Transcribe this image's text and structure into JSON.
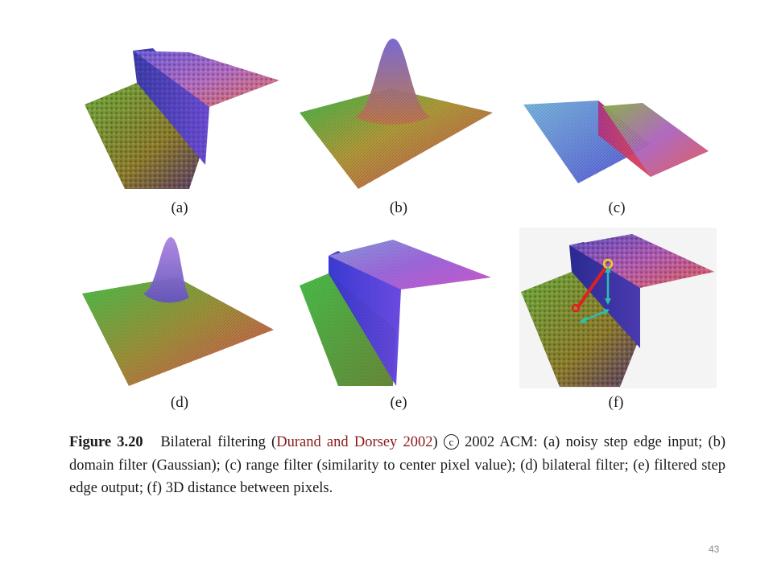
{
  "figure": {
    "panels": [
      {
        "id": "a",
        "label": "(a)",
        "icon": "noisy-step-surface"
      },
      {
        "id": "b",
        "label": "(b)",
        "icon": "gaussian-surface"
      },
      {
        "id": "c",
        "label": "(c)",
        "icon": "range-filter-surface"
      },
      {
        "id": "d",
        "label": "(d)",
        "icon": "bilateral-filter-surface"
      },
      {
        "id": "e",
        "label": "(e)",
        "icon": "filtered-step-surface"
      },
      {
        "id": "f",
        "label": "(f)",
        "icon": "distance-diagram-surface"
      }
    ],
    "caption": {
      "figure_number": "Figure 3.20",
      "title_start": "Bilateral filtering (",
      "citation": "Durand and Dorsey 2002",
      "after_citation": ")",
      "copyright_symbol": "c",
      "copyright_text": "2002 ACM: ",
      "parts": [
        {
          "tag": "(a)",
          "text": " noisy step edge input; "
        },
        {
          "tag": "(b)",
          "text": " domain filter (Gaussian); "
        },
        {
          "tag": "(c)",
          "text": " range filter (similarity to center pixel value); "
        },
        {
          "tag": "(d)",
          "text": " bilateral filter; "
        },
        {
          "tag": "(e)",
          "text": " filtered step edge output; "
        },
        {
          "tag": "(f)",
          "text": " 3D distance between pixels."
        }
      ]
    }
  },
  "page_number": "43",
  "colors": {
    "background": "#ffffff",
    "citation": "#8a1b1b",
    "page_number": "#8c8c8c"
  }
}
